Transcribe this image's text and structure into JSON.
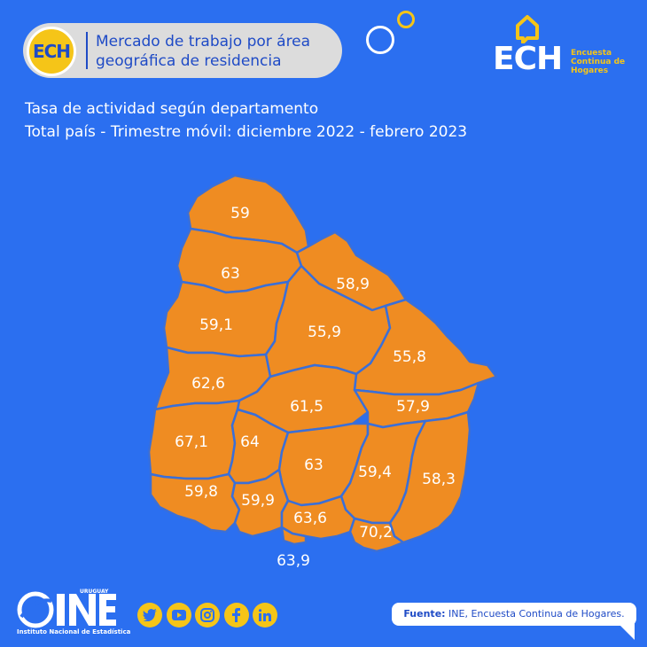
{
  "header": {
    "badge": "ECH",
    "title_line1": "Mercado de trabajo por área",
    "title_line2": "geográfica de residencia"
  },
  "logo": {
    "name": "ECH",
    "subtitle_line1": "Encuesta",
    "subtitle_line2": "Continua de",
    "subtitle_line3": "Hogares"
  },
  "subtitle": {
    "line1": "Tasa de actividad según departamento",
    "line2": "Total país - Trimestre móvil: diciembre 2022 - febrero 2023"
  },
  "map": {
    "fill_color": "#ef8c22",
    "border_color": "#3a6fd8",
    "departments": [
      {
        "id": "artigas",
        "value": "59"
      },
      {
        "id": "salto",
        "value": "63"
      },
      {
        "id": "rivera",
        "value": "58,9"
      },
      {
        "id": "paysandu",
        "value": "59,1"
      },
      {
        "id": "tacuarembo",
        "value": "55,9"
      },
      {
        "id": "cerro-largo",
        "value": "55,8"
      },
      {
        "id": "rio-negro",
        "value": "62,6"
      },
      {
        "id": "durazno",
        "value": "61,5"
      },
      {
        "id": "treinta-y-tres",
        "value": "57,9"
      },
      {
        "id": "soriano",
        "value": "67,1"
      },
      {
        "id": "flores",
        "value": "64"
      },
      {
        "id": "florida",
        "value": "63"
      },
      {
        "id": "lavalleja",
        "value": "59,4"
      },
      {
        "id": "rocha",
        "value": "58,3"
      },
      {
        "id": "colonia",
        "value": "59,8"
      },
      {
        "id": "san-jose",
        "value": "59,9"
      },
      {
        "id": "canelones",
        "value": "63,6"
      },
      {
        "id": "maldonado",
        "value": "70,2"
      },
      {
        "id": "montevideo",
        "value": "63,9"
      }
    ]
  },
  "footer": {
    "ine_top": "URUGUAY",
    "ine_name": "INE",
    "ine_caption": "Instituto Nacional de Estadística",
    "social_icons": [
      "twitter-icon",
      "youtube-icon",
      "instagram-icon",
      "facebook-icon",
      "linkedin-icon"
    ],
    "source_label": "Fuente:",
    "source_text": " INE, Encuesta Continua de Hogares."
  },
  "colors": {
    "background": "#2b6ff0",
    "accent_yellow": "#f5c518",
    "map_orange": "#ef8c22",
    "text_blue": "#1f4bc6"
  }
}
